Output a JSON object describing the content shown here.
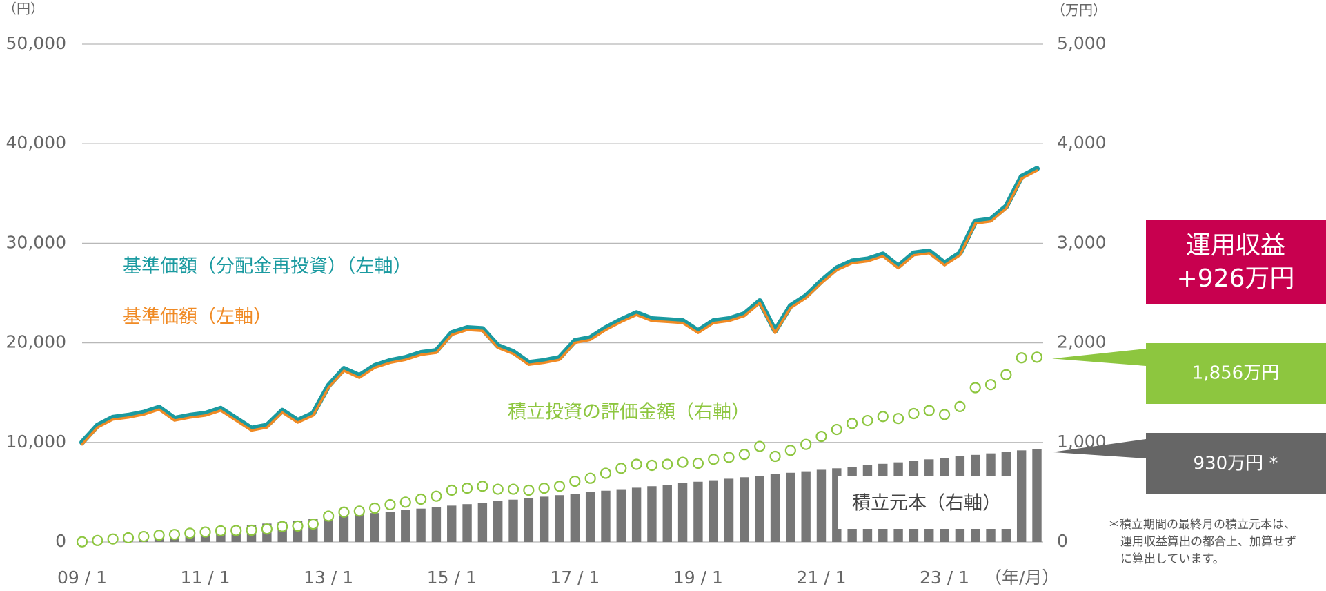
{
  "chart_data": {
    "type": "line",
    "y_unit": "（円）",
    "y2_unit": "（万円）",
    "x_unit": "（年/月）",
    "categories": [
      "09 / 1",
      null,
      null,
      null,
      null,
      null,
      null,
      null,
      "11 / 1",
      null,
      null,
      null,
      null,
      null,
      null,
      null,
      "13 / 1",
      null,
      null,
      null,
      null,
      null,
      null,
      null,
      "15 / 1",
      null,
      null,
      null,
      null,
      null,
      null,
      null,
      "17 / 1",
      null,
      null,
      null,
      null,
      null,
      null,
      null,
      "19 / 1",
      null,
      null,
      null,
      null,
      null,
      null,
      null,
      "21 / 1",
      null,
      null,
      null,
      null,
      null,
      null,
      null,
      "23 / 1",
      null,
      null,
      null,
      null,
      null,
      null
    ],
    "ylim": [
      0,
      50000
    ],
    "yticks": [
      0,
      {
        "value": 10000,
        "label": "10,000"
      },
      {
        "value": 20000,
        "label": "20,000"
      },
      {
        "value": 30000,
        "label": "30,000"
      },
      {
        "value": 40000,
        "label": "40,000"
      },
      {
        "value": 50000,
        "label": "50,000"
      }
    ],
    "y2lim": [
      0,
      5000
    ],
    "y2ticks": [
      0,
      {
        "value": 1000,
        "label": "1,000"
      },
      {
        "value": 2000,
        "label": "2,000"
      },
      {
        "value": 3000,
        "label": "3,000"
      },
      {
        "value": 4000,
        "label": "4,000"
      },
      {
        "value": 5000,
        "label": "5,000"
      }
    ],
    "grid": true,
    "series": [
      {
        "name": "積立元本（右軸）",
        "type": "bar",
        "axis": "y2",
        "color": "#777777",
        "values": [
          5,
          20,
          35,
          50,
          65,
          80,
          95,
          110,
          125,
          140,
          155,
          170,
          185,
          200,
          215,
          230,
          245,
          260,
          275,
          290,
          305,
          320,
          335,
          350,
          365,
          380,
          395,
          410,
          425,
          440,
          455,
          470,
          485,
          500,
          515,
          530,
          545,
          560,
          575,
          590,
          605,
          620,
          635,
          650,
          665,
          680,
          695,
          710,
          725,
          740,
          755,
          770,
          785,
          800,
          815,
          830,
          845,
          860,
          875,
          890,
          905,
          920,
          930
        ]
      },
      {
        "name": "基準価額（分配金再投資）（左軸）",
        "type": "line",
        "color": "#1a9aa0",
        "values": [
          10000,
          11700,
          12500,
          12700,
          13000,
          13500,
          12400,
          12700,
          12900,
          13400,
          12400,
          11400,
          11700,
          13200,
          12200,
          12900,
          15700,
          17400,
          16700,
          17700,
          18200,
          18500,
          19000,
          19200,
          21000,
          21500,
          21400,
          19700,
          19100,
          18000,
          18200,
          18500,
          20200,
          20500,
          21500,
          22300,
          23000,
          22400,
          22300,
          22200,
          21200,
          22200,
          22400,
          22900,
          24200,
          21200,
          23700,
          24700,
          26200,
          27500,
          28200,
          28400,
          28900,
          27700,
          29000,
          29200,
          28000,
          29000,
          32200,
          32400,
          33700,
          36700,
          37500
        ]
      },
      {
        "name": "基準価額（左軸）",
        "type": "line",
        "color": "#f08a24",
        "values": [
          9800,
          11500,
          12300,
          12500,
          12800,
          13300,
          12200,
          12500,
          12700,
          13200,
          12200,
          11200,
          11500,
          13000,
          12000,
          12700,
          15500,
          17200,
          16500,
          17500,
          18000,
          18300,
          18800,
          19000,
          20800,
          21300,
          21200,
          19500,
          18900,
          17800,
          18000,
          18300,
          20000,
          20300,
          21300,
          22100,
          22800,
          22200,
          22100,
          22000,
          21000,
          22000,
          22200,
          22700,
          24000,
          21000,
          23500,
          24500,
          26000,
          27300,
          28000,
          28200,
          28700,
          27500,
          28800,
          29000,
          27800,
          28800,
          32000,
          32200,
          33500,
          36500,
          37300
        ]
      },
      {
        "name": "積立投資の評価金額（右軸）",
        "type": "scatter",
        "axis": "y2",
        "color": "#8dc63f",
        "values": [
          2,
          15,
          30,
          42,
          55,
          68,
          75,
          88,
          100,
          112,
          115,
          118,
          130,
          155,
          160,
          180,
          260,
          300,
          310,
          340,
          375,
          400,
          430,
          460,
          520,
          540,
          560,
          530,
          530,
          520,
          540,
          560,
          610,
          640,
          690,
          740,
          780,
          770,
          780,
          800,
          790,
          830,
          850,
          880,
          960,
          860,
          920,
          980,
          1060,
          1130,
          1190,
          1220,
          1260,
          1240,
          1290,
          1320,
          1280,
          1360,
          1550,
          1580,
          1680,
          1850,
          1856
        ]
      }
    ],
    "annotations": {
      "profit_title": "運用収益",
      "profit": "+926万円",
      "evaluation": "1,856万円",
      "principal": "930万円 *",
      "footnote": [
        "＊積立期間の最終月の積立元本は、",
        "運用収益算出の都合上、加算せず",
        "に算出しています。"
      ]
    }
  }
}
